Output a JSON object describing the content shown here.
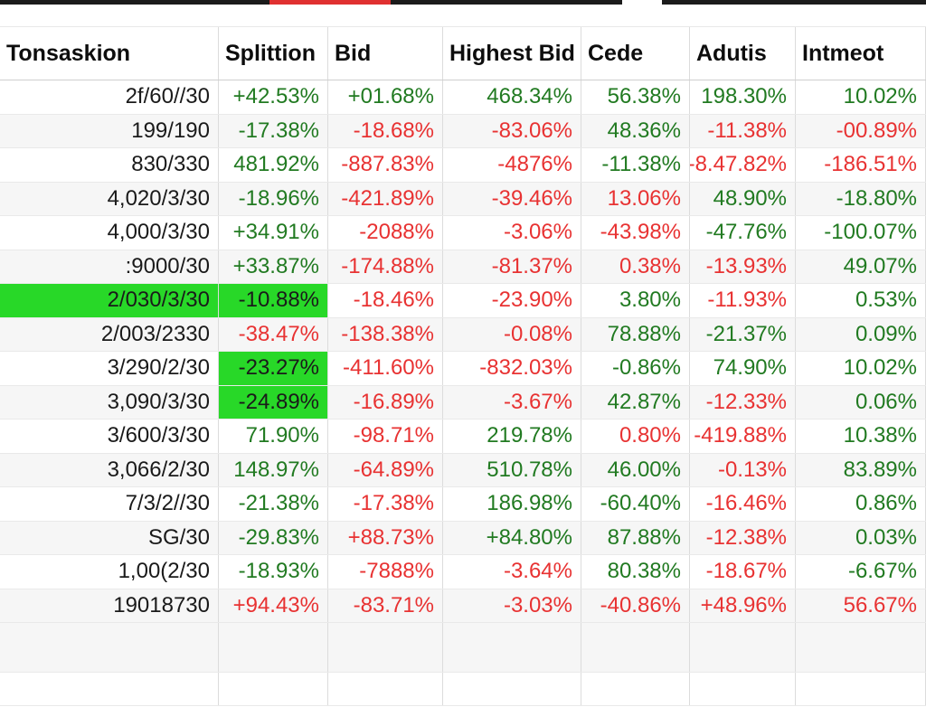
{
  "colors": {
    "positive_text": "#217a21",
    "negative_text": "#e83232",
    "highlight_green": "#28d828",
    "header_text": "#0d0d0d",
    "grid_line": "#dcdcdc",
    "top_edge_dark": "#1b1b1b",
    "top_edge_red": "#e03030"
  },
  "table": {
    "columns": [
      {
        "label": "Tonsaskion"
      },
      {
        "label": "Splittion"
      },
      {
        "label": "Bid"
      },
      {
        "label": "Highest Bid"
      },
      {
        "label": "Cede"
      },
      {
        "label": "Adutis"
      },
      {
        "label": "Intmeot"
      }
    ],
    "rows": [
      {
        "cells": [
          {
            "t": "2f/60//30",
            "c": "dark"
          },
          {
            "t": "+42.53%",
            "c": "green"
          },
          {
            "t": "+01.68%",
            "c": "green"
          },
          {
            "t": "468.34%",
            "c": "green"
          },
          {
            "t": "56.38%",
            "c": "green"
          },
          {
            "t": "198.30%",
            "c": "green"
          },
          {
            "t": "10.02%",
            "c": "green"
          }
        ]
      },
      {
        "cells": [
          {
            "t": "199/190",
            "c": "dark"
          },
          {
            "t": "-17.38%",
            "c": "green"
          },
          {
            "t": "-18.68%",
            "c": "red"
          },
          {
            "t": "-83.06%",
            "c": "red"
          },
          {
            "t": "48.36%",
            "c": "green"
          },
          {
            "t": "-11.38%",
            "c": "red"
          },
          {
            "t": "-00.89%",
            "c": "red"
          }
        ]
      },
      {
        "cells": [
          {
            "t": "830/330",
            "c": "dark"
          },
          {
            "t": "481.92%",
            "c": "green"
          },
          {
            "t": "-887.83%",
            "c": "red"
          },
          {
            "t": "-4876%",
            "c": "red"
          },
          {
            "t": "-11.38%",
            "c": "green"
          },
          {
            "t": "-8.47.82%",
            "c": "red"
          },
          {
            "t": "-186.51%",
            "c": "red"
          }
        ]
      },
      {
        "cells": [
          {
            "t": "4,020/3/30",
            "c": "dark"
          },
          {
            "t": "-18.96%",
            "c": "green"
          },
          {
            "t": "-421.89%",
            "c": "red"
          },
          {
            "t": "-39.46%",
            "c": "red"
          },
          {
            "t": "13.06%",
            "c": "red"
          },
          {
            "t": "48.90%",
            "c": "green"
          },
          {
            "t": "-18.80%",
            "c": "green"
          }
        ]
      },
      {
        "cells": [
          {
            "t": "4,000/3/30",
            "c": "dark"
          },
          {
            "t": "+34.91%",
            "c": "green"
          },
          {
            "t": "-2088%",
            "c": "red"
          },
          {
            "t": "-3.06%",
            "c": "red"
          },
          {
            "t": "-43.98%",
            "c": "red"
          },
          {
            "t": "-47.76%",
            "c": "green"
          },
          {
            "t": "-100.07%",
            "c": "green"
          }
        ]
      },
      {
        "cells": [
          {
            "t": ":9000/30",
            "c": "dark"
          },
          {
            "t": "+33.87%",
            "c": "green"
          },
          {
            "t": "-174.88%",
            "c": "red"
          },
          {
            "t": "-81.37%",
            "c": "red"
          },
          {
            "t": "0.38%",
            "c": "red"
          },
          {
            "t": "-13.93%",
            "c": "red"
          },
          {
            "t": "49.07%",
            "c": "green"
          }
        ]
      },
      {
        "cells": [
          {
            "t": "2/030/3/30",
            "c": "dark",
            "hl": true
          },
          {
            "t": "-10.88%",
            "c": "dark",
            "hl": true
          },
          {
            "t": "-18.46%",
            "c": "red"
          },
          {
            "t": "-23.90%",
            "c": "red"
          },
          {
            "t": "3.80%",
            "c": "green"
          },
          {
            "t": "-11.93%",
            "c": "red"
          },
          {
            "t": "0.53%",
            "c": "green"
          }
        ]
      },
      {
        "cells": [
          {
            "t": "2/003/2330",
            "c": "dark"
          },
          {
            "t": "-38.47%",
            "c": "red"
          },
          {
            "t": "-138.38%",
            "c": "red"
          },
          {
            "t": "-0.08%",
            "c": "red"
          },
          {
            "t": "78.88%",
            "c": "green"
          },
          {
            "t": "-21.37%",
            "c": "green"
          },
          {
            "t": "0.09%",
            "c": "green"
          }
        ]
      },
      {
        "cells": [
          {
            "t": "3/290/2/30",
            "c": "dark"
          },
          {
            "t": "-23.27%",
            "c": "dark",
            "hl": true
          },
          {
            "t": "-411.60%",
            "c": "red"
          },
          {
            "t": "-832.03%",
            "c": "red"
          },
          {
            "t": "-0.86%",
            "c": "green"
          },
          {
            "t": "74.90%",
            "c": "green"
          },
          {
            "t": "10.02%",
            "c": "green"
          }
        ]
      },
      {
        "cells": [
          {
            "t": "3,090/3/30",
            "c": "dark"
          },
          {
            "t": "-24.89%",
            "c": "dark",
            "hl": true
          },
          {
            "t": "-16.89%",
            "c": "red"
          },
          {
            "t": "-3.67%",
            "c": "red"
          },
          {
            "t": "42.87%",
            "c": "green"
          },
          {
            "t": "-12.33%",
            "c": "red"
          },
          {
            "t": "0.06%",
            "c": "green"
          }
        ]
      },
      {
        "cells": [
          {
            "t": "3/600/3/30",
            "c": "dark"
          },
          {
            "t": "71.90%",
            "c": "green"
          },
          {
            "t": "-98.71%",
            "c": "red"
          },
          {
            "t": "219.78%",
            "c": "green"
          },
          {
            "t": "0.80%",
            "c": "red"
          },
          {
            "t": "-419.88%",
            "c": "red"
          },
          {
            "t": "10.38%",
            "c": "green"
          }
        ]
      },
      {
        "cells": [
          {
            "t": "3,066/2/30",
            "c": "dark"
          },
          {
            "t": "148.97%",
            "c": "green"
          },
          {
            "t": "-64.89%",
            "c": "red"
          },
          {
            "t": "510.78%",
            "c": "green"
          },
          {
            "t": "46.00%",
            "c": "green"
          },
          {
            "t": "-0.13%",
            "c": "red"
          },
          {
            "t": "83.89%",
            "c": "green"
          }
        ]
      },
      {
        "cells": [
          {
            "t": "7/3/2//30",
            "c": "dark"
          },
          {
            "t": "-21.38%",
            "c": "green"
          },
          {
            "t": "-17.38%",
            "c": "red"
          },
          {
            "t": "186.98%",
            "c": "green"
          },
          {
            "t": "-60.40%",
            "c": "green"
          },
          {
            "t": "-16.46%",
            "c": "red"
          },
          {
            "t": "0.86%",
            "c": "green"
          }
        ]
      },
      {
        "cells": [
          {
            "t": "SG/30",
            "c": "dark"
          },
          {
            "t": "-29.83%",
            "c": "green"
          },
          {
            "t": "+88.73%",
            "c": "red"
          },
          {
            "t": "+84.80%",
            "c": "green"
          },
          {
            "t": "87.88%",
            "c": "green"
          },
          {
            "t": "-12.38%",
            "c": "red"
          },
          {
            "t": "0.03%",
            "c": "green"
          }
        ]
      },
      {
        "cells": [
          {
            "t": "1,00(2/30",
            "c": "dark"
          },
          {
            "t": "-18.93%",
            "c": "green"
          },
          {
            "t": "-7888%",
            "c": "red"
          },
          {
            "t": "-3.64%",
            "c": "red"
          },
          {
            "t": "80.38%",
            "c": "green"
          },
          {
            "t": "-18.67%",
            "c": "red"
          },
          {
            "t": "-6.67%",
            "c": "green"
          }
        ]
      },
      {
        "cells": [
          {
            "t": "19018730",
            "c": "dark"
          },
          {
            "t": "+94.43%",
            "c": "red"
          },
          {
            "t": "-83.71%",
            "c": "red"
          },
          {
            "t": "-3.03%",
            "c": "red"
          },
          {
            "t": "-40.86%",
            "c": "red"
          },
          {
            "t": "+48.96%",
            "c": "red"
          },
          {
            "t": "56.67%",
            "c": "red"
          }
        ]
      },
      {
        "cells": [
          {
            "t": "",
            "c": "dark"
          },
          {
            "t": "",
            "c": "dark"
          },
          {
            "t": "",
            "c": "dark"
          },
          {
            "t": "",
            "c": "dark"
          },
          {
            "t": "",
            "c": "dark"
          },
          {
            "t": "",
            "c": "dark"
          },
          {
            "t": "",
            "c": "dark"
          }
        ]
      },
      {
        "cells": [
          {
            "t": "",
            "c": "dark"
          },
          {
            "t": "",
            "c": "dark"
          },
          {
            "t": "",
            "c": "dark"
          },
          {
            "t": "",
            "c": "dark"
          },
          {
            "t": "",
            "c": "dark"
          },
          {
            "t": "",
            "c": "dark"
          },
          {
            "t": "",
            "c": "dark"
          }
        ]
      }
    ]
  }
}
